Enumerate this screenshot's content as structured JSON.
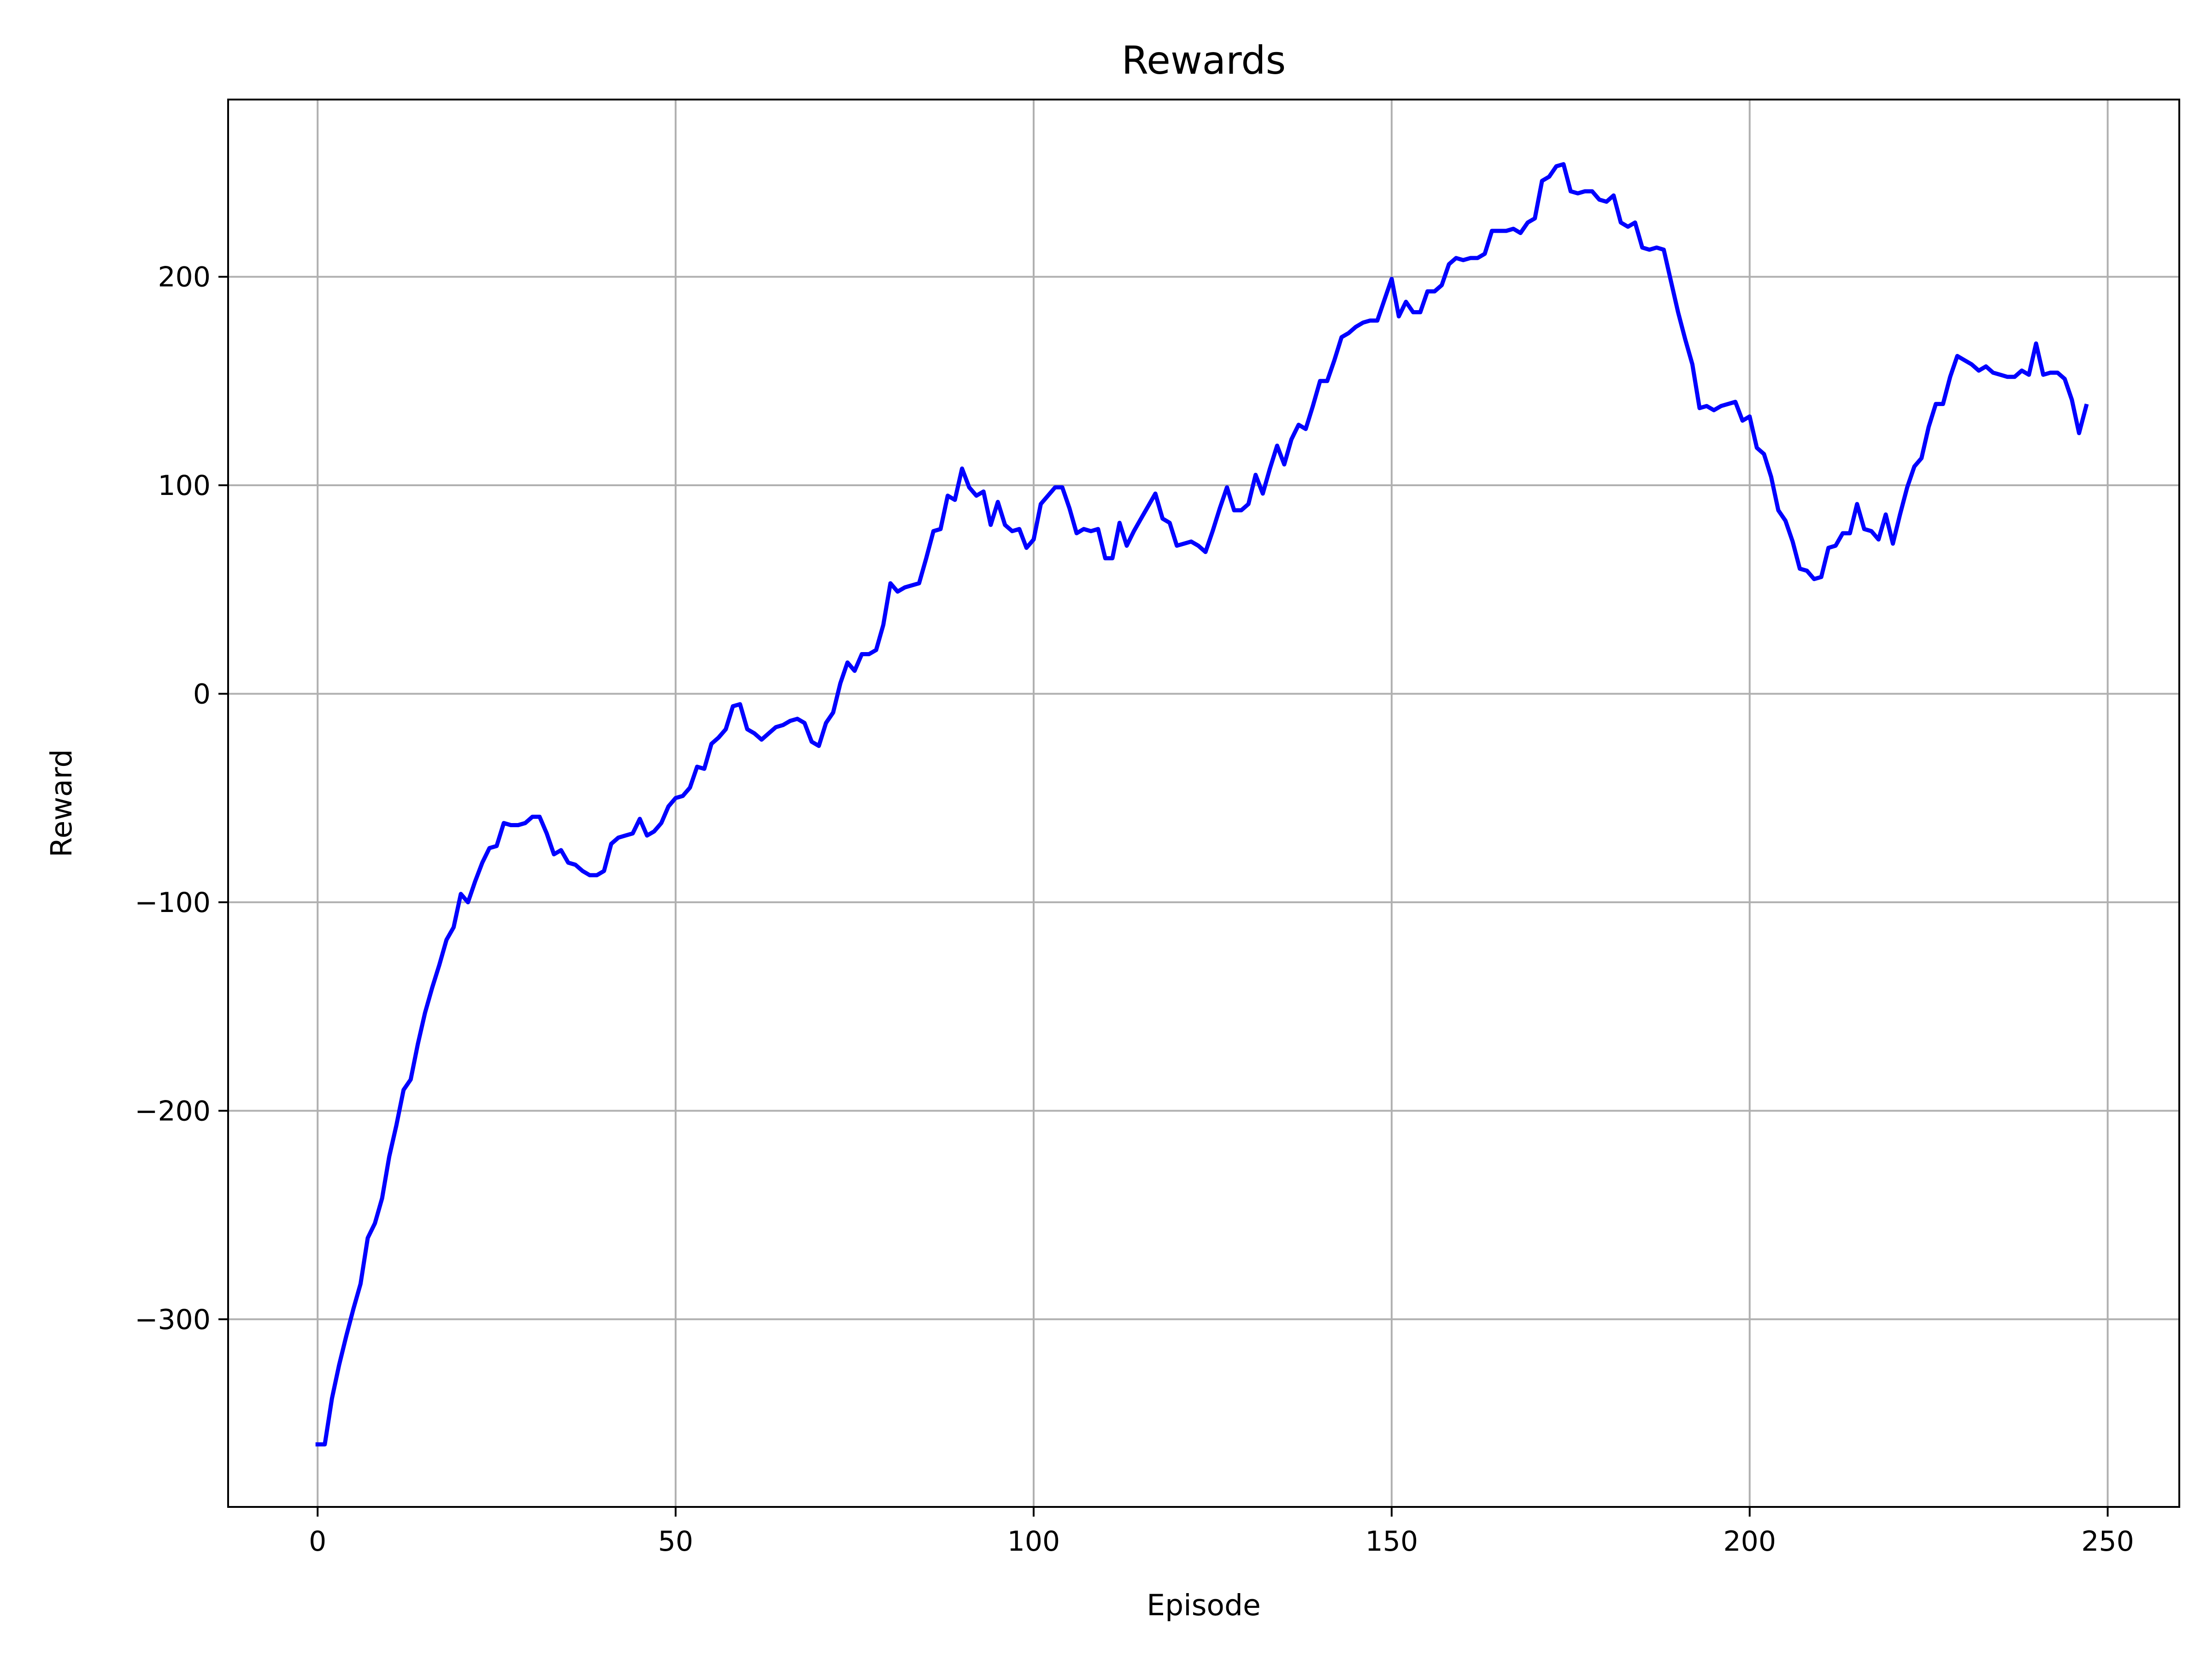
{
  "chart_data": {
    "type": "line",
    "title": "Rewards",
    "xlabel": "Episode",
    "ylabel": "Reward",
    "xlim": [
      -12.5,
      260
    ],
    "ylim": [
      -390,
      285
    ],
    "xticks": [
      0,
      50,
      100,
      150,
      200,
      250
    ],
    "yticks": [
      -300,
      -200,
      -100,
      0,
      100,
      200
    ],
    "xtick_labels": [
      "0",
      "50",
      "100",
      "150",
      "200",
      "250"
    ],
    "ytick_labels": [
      "−300",
      "−200",
      "−100",
      "0",
      "100",
      "200"
    ],
    "grid": true,
    "line_color": "#0000ff",
    "series": [
      {
        "x": [
          0,
          1,
          2,
          3,
          4,
          5,
          6,
          7,
          8,
          9,
          10,
          11,
          12,
          13,
          14,
          15,
          16,
          17,
          18,
          19,
          20,
          21,
          22,
          23,
          24,
          25,
          26,
          27,
          28,
          29,
          30,
          31,
          32,
          33,
          34,
          35,
          36,
          37,
          38,
          39,
          40,
          41,
          42,
          43,
          44,
          45,
          46,
          47,
          48,
          49,
          50,
          51,
          52,
          53,
          54,
          55,
          56,
          57,
          58,
          59,
          60,
          61,
          62,
          63,
          64,
          65,
          66,
          67,
          68,
          69,
          70,
          71,
          72,
          73,
          74,
          75,
          76,
          77,
          78,
          79,
          80,
          81,
          82,
          83,
          84,
          85,
          86,
          87,
          88,
          89,
          90,
          91,
          92,
          93,
          94,
          95,
          96,
          97,
          98,
          99,
          100,
          101,
          102,
          103,
          104,
          105,
          106,
          107,
          108,
          109,
          110,
          111,
          112,
          113,
          114,
          115,
          116,
          117,
          118,
          119,
          120,
          121,
          122,
          123,
          124,
          125,
          126,
          127,
          128,
          129,
          130,
          131,
          132,
          133,
          134,
          135,
          136,
          137,
          138,
          139,
          140,
          141,
          142,
          143,
          144,
          145,
          146,
          147,
          148,
          149,
          150,
          151,
          152,
          153,
          154,
          155,
          156,
          157,
          158,
          159,
          160,
          161,
          162,
          163,
          164,
          165,
          166,
          167,
          168,
          169,
          170,
          171,
          172,
          173,
          174,
          175,
          176,
          177,
          178,
          179,
          180,
          181,
          182,
          183,
          184,
          185,
          186,
          187,
          188,
          189,
          190,
          191,
          192,
          193,
          194,
          195,
          196,
          197,
          198,
          199,
          200,
          201,
          202,
          203,
          204,
          205,
          206,
          207,
          208,
          209,
          210,
          211,
          212,
          213,
          214,
          215,
          216,
          217,
          218,
          219,
          220,
          221,
          222,
          223,
          224,
          225,
          226,
          227,
          228,
          229,
          230,
          231,
          232,
          233,
          234,
          235,
          236,
          237,
          238,
          239,
          240,
          241,
          242,
          243,
          244,
          245,
          246,
          247
        ],
        "values": [
          -360,
          -360,
          -338,
          -322,
          -308,
          -295,
          -283,
          -261,
          -254,
          -242,
          -222,
          -207,
          -190,
          -185,
          -168,
          -153,
          -141,
          -130,
          -118,
          -112,
          -96,
          -100,
          -90,
          -81,
          -74,
          -73,
          -62,
          -63,
          -63,
          -62,
          -59,
          -59,
          -67,
          -77,
          -75,
          -81,
          -82,
          -85,
          -87,
          -87,
          -85,
          -72,
          -69,
          -68,
          -67,
          -60,
          -68,
          -66,
          -62,
          -54,
          -50,
          -49,
          -45,
          -35,
          -36,
          -24,
          -21,
          -17,
          -6,
          -5,
          -17,
          -19,
          -22,
          -19,
          -16,
          -15,
          -13,
          -12,
          -14,
          -23,
          -25,
          -14,
          -9,
          5,
          15,
          11,
          19,
          19,
          21,
          33,
          53,
          49,
          51,
          52,
          53,
          65,
          78,
          79,
          95,
          93,
          108,
          99,
          95,
          97,
          81,
          92,
          81,
          78,
          79,
          70,
          74,
          91,
          95,
          99,
          99,
          89,
          77,
          79,
          78,
          79,
          65,
          65,
          82,
          71,
          78,
          84,
          90,
          96,
          84,
          82,
          71,
          72,
          73,
          71,
          68,
          78,
          89,
          99,
          88,
          88,
          91,
          105,
          96,
          108,
          119,
          110,
          122,
          129,
          127,
          138,
          150,
          150,
          160,
          171,
          173,
          176,
          178,
          179,
          179,
          189,
          199,
          181,
          188,
          183,
          183,
          193,
          193,
          196,
          206,
          209,
          208,
          209,
          209,
          211,
          222,
          222,
          222,
          223,
          221,
          226,
          228,
          246,
          248,
          253,
          254,
          241,
          240,
          241,
          241,
          237,
          236,
          239,
          226,
          224,
          226,
          214,
          213,
          214,
          213,
          198,
          183,
          170,
          158,
          137,
          138,
          136,
          138,
          139,
          140,
          131,
          133,
          118,
          115,
          104,
          88,
          83,
          73,
          60,
          59,
          55,
          56,
          70,
          71,
          77,
          77,
          91,
          79,
          78,
          74,
          86,
          72,
          86,
          99,
          109,
          113,
          128,
          139,
          139,
          152,
          162,
          160,
          158,
          155,
          157,
          154,
          153,
          152,
          152,
          155,
          153,
          168,
          153,
          154,
          154,
          151,
          141,
          125,
          138
        ]
      }
    ]
  }
}
